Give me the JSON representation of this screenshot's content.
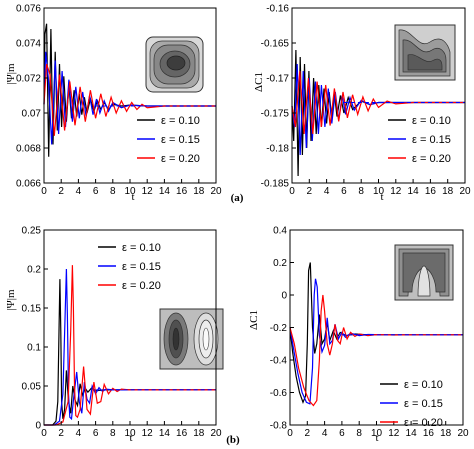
{
  "figure": {
    "label_a": "(a)",
    "label_b": "(b)"
  },
  "chart_data": [
    {
      "type": "line",
      "panel": "a-left",
      "xlabel": "t",
      "ylabel": "|Ψ|m",
      "xlim": [
        0,
        20
      ],
      "ylim": [
        0.066,
        0.076
      ],
      "xticks": [
        "0",
        "2",
        "4",
        "6",
        "8",
        "10",
        "12",
        "14",
        "16",
        "18",
        "20"
      ],
      "yticks": [
        "0.066",
        "0.068",
        "0.07",
        "0.072",
        "0.074",
        "0.076"
      ],
      "legend_position": "lower-right",
      "inset": "single-vortex",
      "series": [
        {
          "name": "ε = 0.10",
          "color": "#000000",
          "x": [
            0,
            0.1,
            0.3,
            0.55,
            0.8,
            1.05,
            1.3,
            1.55,
            1.8,
            2.05,
            2.3,
            2.6,
            2.9,
            3.2,
            3.5,
            3.8,
            4.1,
            4.4,
            4.7,
            5.0,
            5.4,
            5.8,
            6.2,
            6.6,
            7.0,
            7.5,
            8,
            9,
            10,
            12,
            14,
            16,
            18,
            20
          ],
          "y": [
            0.0705,
            0.0745,
            0.0751,
            0.0675,
            0.0748,
            0.0682,
            0.0735,
            0.069,
            0.0728,
            0.0692,
            0.0721,
            0.0695,
            0.0716,
            0.0697,
            0.0713,
            0.0698,
            0.0711,
            0.0699,
            0.0709,
            0.07,
            0.0708,
            0.0701,
            0.0707,
            0.0702,
            0.0706,
            0.0702,
            0.0705,
            0.0704,
            0.07045,
            0.0704,
            0.0704,
            0.0704,
            0.0704,
            0.0704
          ]
        },
        {
          "name": "ε = 0.15",
          "color": "#0000ff",
          "x": [
            0,
            0.2,
            0.5,
            0.9,
            1.3,
            1.7,
            2.1,
            2.5,
            2.9,
            3.3,
            3.7,
            4.1,
            4.5,
            4.9,
            5.3,
            5.7,
            6.1,
            6.5,
            7.0,
            7.5,
            8,
            9,
            10,
            12,
            14,
            16,
            18,
            20
          ],
          "y": [
            0.0705,
            0.0735,
            0.072,
            0.0682,
            0.073,
            0.0688,
            0.0724,
            0.0692,
            0.0719,
            0.0695,
            0.0715,
            0.0697,
            0.0712,
            0.0698,
            0.071,
            0.0699,
            0.0708,
            0.07,
            0.0707,
            0.0701,
            0.0706,
            0.0703,
            0.07045,
            0.0704,
            0.0704,
            0.0704,
            0.0704,
            0.0704
          ]
        },
        {
          "name": "ε = 0.20",
          "color": "#ff0000",
          "x": [
            0,
            0.3,
            0.7,
            1.2,
            1.8,
            2.4,
            3.0,
            3.6,
            4.2,
            4.8,
            5.4,
            6.0,
            6.6,
            7.2,
            7.8,
            8.4,
            9.0,
            9.6,
            10.2,
            10.8,
            11.4,
            12,
            14,
            16,
            18,
            20
          ],
          "y": [
            0.0705,
            0.0728,
            0.0722,
            0.0687,
            0.0722,
            0.069,
            0.0718,
            0.0693,
            0.0715,
            0.0695,
            0.0713,
            0.0697,
            0.0711,
            0.0698,
            0.0709,
            0.07,
            0.0707,
            0.0701,
            0.0706,
            0.0702,
            0.0705,
            0.0703,
            0.0704,
            0.0704,
            0.0704,
            0.0704
          ]
        }
      ]
    },
    {
      "type": "line",
      "panel": "a-right",
      "xlabel": "t",
      "ylabel": "ΔC1",
      "xlim": [
        0,
        20
      ],
      "ylim": [
        -0.185,
        -0.16
      ],
      "xticks": [
        "0",
        "2",
        "4",
        "6",
        "8",
        "10",
        "12",
        "14",
        "16",
        "18",
        "20"
      ],
      "yticks": [
        "-0.185",
        "-0.18",
        "-0.175",
        "-0.17",
        "-0.165",
        "-0.16"
      ],
      "legend_position": "lower-right",
      "inset": "wavy-vortex",
      "series": [
        {
          "name": "ε = 0.10",
          "color": "#000000",
          "x": [
            0,
            0.2,
            0.45,
            0.7,
            0.95,
            1.2,
            1.45,
            1.7,
            1.95,
            2.2,
            2.5,
            2.8,
            3.1,
            3.4,
            3.7,
            4.0,
            4.3,
            4.6,
            4.9,
            5.2,
            5.6,
            6.0,
            6.5,
            7,
            8,
            9,
            10,
            12,
            14,
            16,
            18,
            20
          ],
          "y": [
            -0.174,
            -0.179,
            -0.166,
            -0.184,
            -0.167,
            -0.181,
            -0.168,
            -0.18,
            -0.169,
            -0.179,
            -0.17,
            -0.178,
            -0.171,
            -0.177,
            -0.1715,
            -0.1765,
            -0.172,
            -0.176,
            -0.1722,
            -0.1755,
            -0.1725,
            -0.175,
            -0.1728,
            -0.1745,
            -0.1733,
            -0.1738,
            -0.1735,
            -0.1735,
            -0.1735,
            -0.1735,
            -0.1735,
            -0.1735
          ]
        },
        {
          "name": "ε = 0.15",
          "color": "#0000ff",
          "x": [
            0,
            0.3,
            0.6,
            0.95,
            1.3,
            1.65,
            2.0,
            2.35,
            2.7,
            3.05,
            3.4,
            3.8,
            4.2,
            4.6,
            5.0,
            5.4,
            5.8,
            6.2,
            6.7,
            7.2,
            8,
            9,
            10,
            12,
            14,
            16,
            18,
            20
          ],
          "y": [
            -0.174,
            -0.177,
            -0.168,
            -0.181,
            -0.169,
            -0.18,
            -0.17,
            -0.179,
            -0.1705,
            -0.178,
            -0.171,
            -0.177,
            -0.1715,
            -0.1765,
            -0.172,
            -0.176,
            -0.1725,
            -0.1752,
            -0.1728,
            -0.1746,
            -0.1732,
            -0.1738,
            -0.1735,
            -0.1735,
            -0.1735,
            -0.1735,
            -0.1735,
            -0.1735
          ]
        },
        {
          "name": "ε = 0.20",
          "color": "#ff0000",
          "x": [
            0,
            0.4,
            0.9,
            1.4,
            1.9,
            2.4,
            2.9,
            3.4,
            3.9,
            4.4,
            4.9,
            5.4,
            5.9,
            6.4,
            7.0,
            7.6,
            8.2,
            8.8,
            9.4,
            10,
            11,
            12,
            14,
            16,
            18,
            20
          ],
          "y": [
            -0.174,
            -0.177,
            -0.169,
            -0.178,
            -0.17,
            -0.178,
            -0.1705,
            -0.177,
            -0.171,
            -0.1768,
            -0.1715,
            -0.1762,
            -0.172,
            -0.1757,
            -0.1724,
            -0.1752,
            -0.1727,
            -0.1747,
            -0.173,
            -0.1742,
            -0.1733,
            -0.1737,
            -0.1735,
            -0.1735,
            -0.1735,
            -0.1735
          ]
        }
      ]
    },
    {
      "type": "line",
      "panel": "b-left",
      "xlabel": "t",
      "ylabel": "|Ψ|m",
      "xlim": [
        0,
        20
      ],
      "ylim": [
        0,
        0.25
      ],
      "xticks": [
        "0",
        "2",
        "4",
        "6",
        "8",
        "10",
        "12",
        "14",
        "16",
        "18",
        "20"
      ],
      "yticks": [
        "0",
        "0.05",
        "0.1",
        "0.15",
        "0.2",
        "0.25"
      ],
      "legend_position": "upper-left",
      "inset": "double-vortex",
      "series": [
        {
          "name": "ε = 0.10",
          "color": "#000000",
          "x": [
            0,
            1.0,
            1.4,
            1.6,
            1.75,
            1.85,
            1.95,
            2.05,
            2.2,
            2.4,
            2.6,
            2.85,
            3.1,
            3.35,
            3.6,
            3.9,
            4.2,
            4.5,
            4.8,
            5.1,
            5.5,
            6,
            7,
            8,
            10,
            12,
            14,
            16,
            18,
            20
          ],
          "y": [
            0,
            0,
            0.005,
            0.03,
            0.12,
            0.187,
            0.12,
            0.03,
            0.008,
            0.02,
            0.07,
            0.03,
            0.015,
            0.05,
            0.032,
            0.025,
            0.053,
            0.038,
            0.047,
            0.042,
            0.047,
            0.044,
            0.045,
            0.045,
            0.045,
            0.045,
            0.045,
            0.045,
            0.045,
            0.045
          ]
        },
        {
          "name": "ε = 0.15",
          "color": "#0000ff",
          "x": [
            0,
            1.2,
            1.8,
            2.2,
            2.45,
            2.6,
            2.72,
            2.85,
            3.0,
            3.2,
            3.5,
            3.8,
            4.1,
            4.4,
            4.7,
            5.0,
            5.3,
            5.6,
            6.0,
            6.4,
            6.8,
            7.2,
            8,
            9,
            10,
            12,
            14,
            16,
            18,
            20
          ],
          "y": [
            0,
            0,
            0.005,
            0.04,
            0.14,
            0.2,
            0.14,
            0.04,
            0.01,
            0.008,
            0.04,
            0.068,
            0.03,
            0.015,
            0.055,
            0.033,
            0.028,
            0.05,
            0.04,
            0.048,
            0.043,
            0.046,
            0.045,
            0.045,
            0.045,
            0.045,
            0.045,
            0.045,
            0.045,
            0.045
          ]
        },
        {
          "name": "ε = 0.20",
          "color": "#ff0000",
          "x": [
            0,
            1.4,
            2.2,
            2.8,
            3.1,
            3.3,
            3.42,
            3.55,
            3.7,
            3.9,
            4.2,
            4.6,
            5.0,
            5.4,
            5.8,
            6.2,
            6.6,
            7.0,
            7.5,
            8.0,
            8.5,
            9.0,
            10,
            11,
            12,
            14,
            16,
            18,
            20
          ],
          "y": [
            0,
            0,
            0.004,
            0.03,
            0.12,
            0.205,
            0.15,
            0.05,
            0.012,
            0.01,
            0.02,
            0.075,
            0.02,
            0.014,
            0.055,
            0.028,
            0.03,
            0.052,
            0.04,
            0.047,
            0.043,
            0.046,
            0.045,
            0.045,
            0.045,
            0.045,
            0.045,
            0.045,
            0.045
          ]
        }
      ]
    },
    {
      "type": "line",
      "panel": "b-right",
      "xlabel": "t",
      "ylabel": "ΔC1",
      "xlim": [
        0,
        20
      ],
      "ylim": [
        -0.8,
        0.4
      ],
      "xticks": [
        "0",
        "2",
        "4",
        "6",
        "8",
        "10",
        "12",
        "14",
        "16",
        "18",
        "20"
      ],
      "yticks": [
        "-0.8",
        "-0.6",
        "-0.4",
        "-0.2",
        "0",
        "0.2",
        "0.4"
      ],
      "legend_position": "lower-right",
      "inset": "plume",
      "series": [
        {
          "name": "ε = 0.10",
          "color": "#000000",
          "x": [
            0,
            0.3,
            0.7,
            1.1,
            1.5,
            1.8,
            2.0,
            2.15,
            2.35,
            2.6,
            2.85,
            3.1,
            3.4,
            3.7,
            4.0,
            4.3,
            4.6,
            5.0,
            5.4,
            5.8,
            6.5,
            7.5,
            9,
            11,
            14,
            17,
            20
          ],
          "y": [
            -0.2,
            -0.35,
            -0.5,
            -0.6,
            -0.66,
            -0.62,
            -0.3,
            0.15,
            0.2,
            -0.2,
            -0.36,
            -0.3,
            -0.12,
            -0.3,
            -0.27,
            -0.17,
            -0.28,
            -0.22,
            -0.27,
            -0.23,
            -0.25,
            -0.24,
            -0.245,
            -0.245,
            -0.245,
            -0.245,
            -0.245
          ]
        },
        {
          "name": "ε = 0.15",
          "color": "#0000ff",
          "x": [
            0,
            0.4,
            0.9,
            1.4,
            1.9,
            2.3,
            2.6,
            2.8,
            2.95,
            3.15,
            3.4,
            3.7,
            4.0,
            4.3,
            4.6,
            4.9,
            5.2,
            5.6,
            6.0,
            6.4,
            7.0,
            8,
            9,
            11,
            14,
            17,
            20
          ],
          "y": [
            -0.2,
            -0.33,
            -0.48,
            -0.6,
            -0.66,
            -0.67,
            -0.45,
            0.0,
            0.1,
            0.05,
            -0.25,
            -0.35,
            -0.31,
            -0.14,
            -0.3,
            -0.28,
            -0.18,
            -0.27,
            -0.23,
            -0.26,
            -0.235,
            -0.25,
            -0.243,
            -0.245,
            -0.245,
            -0.245,
            -0.245
          ]
        },
        {
          "name": "ε = 0.20",
          "color": "#ff0000",
          "x": [
            0,
            0.5,
            1.0,
            1.6,
            2.2,
            2.7,
            3.1,
            3.4,
            3.6,
            3.8,
            4.0,
            4.3,
            4.6,
            4.9,
            5.2,
            5.5,
            5.8,
            6.2,
            6.6,
            7.0,
            7.5,
            8,
            9,
            10,
            12,
            14,
            17,
            20
          ],
          "y": [
            -0.2,
            -0.3,
            -0.45,
            -0.57,
            -0.65,
            -0.68,
            -0.65,
            -0.4,
            -0.1,
            -0.0,
            -0.1,
            -0.3,
            -0.37,
            -0.3,
            -0.18,
            -0.28,
            -0.3,
            -0.2,
            -0.27,
            -0.23,
            -0.255,
            -0.24,
            -0.25,
            -0.244,
            -0.246,
            -0.245,
            -0.245,
            -0.245
          ]
        }
      ]
    }
  ]
}
